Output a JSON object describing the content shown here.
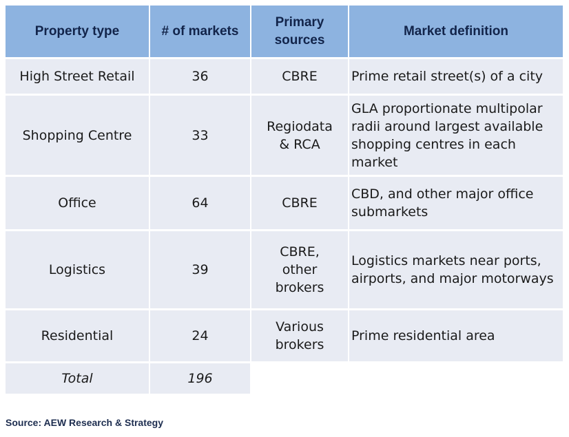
{
  "table": {
    "headers": [
      "Property type",
      "# of markets",
      "Primary sources",
      "Market definition"
    ],
    "rows": [
      {
        "type": "High Street Retail",
        "markets": "36",
        "sources": "CBRE",
        "definition": "Prime retail street(s) of a city"
      },
      {
        "type": "Shopping Centre",
        "markets": "33",
        "sources": "Regiodata & RCA",
        "definition": "GLA proportionate multipolar radii around largest available shopping centres in each market"
      },
      {
        "type": "Office",
        "markets": "64",
        "sources": "CBRE",
        "definition": "CBD, and other major office submarkets"
      },
      {
        "type": "Logistics",
        "markets": "39",
        "sources": "CBRE, other brokers",
        "definition": "Logistics markets near ports, airports, and major motorways"
      },
      {
        "type": "Residential",
        "markets": "24",
        "sources": "Various brokers",
        "definition": "Prime residential area"
      }
    ],
    "total": {
      "label": "Total",
      "markets": "196"
    }
  },
  "source_note": "Source: AEW Research & Strategy",
  "colors": {
    "header_bg": "#8db3e0",
    "header_text": "#12244a",
    "cell_bg": "#e8ebf3"
  }
}
